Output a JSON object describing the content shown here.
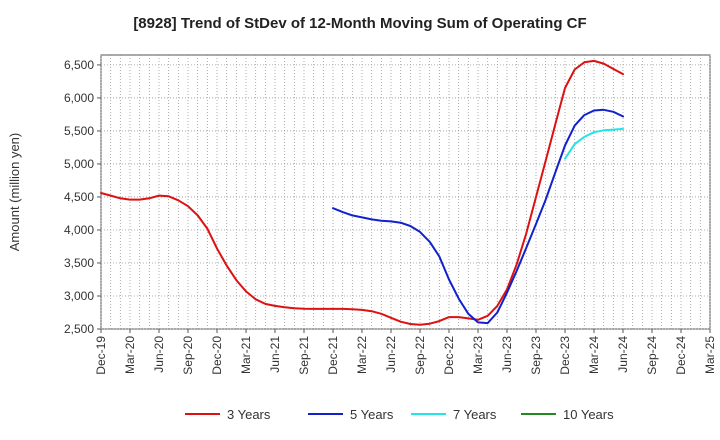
{
  "chart_data": {
    "type": "line",
    "title": "[8928]  Trend of StDev of 12-Month Moving Sum of Operating CF",
    "xlabel": "",
    "ylabel": "Amount (million yen)",
    "ylim": [
      2500,
      6650
    ],
    "yticks": [
      2500,
      3000,
      3500,
      4000,
      4500,
      5000,
      5500,
      6000,
      6500
    ],
    "ytick_labels": [
      "2,500",
      "3,000",
      "3,500",
      "4,000",
      "4,500",
      "5,000",
      "5,500",
      "6,000",
      "6,500"
    ],
    "xticks": [
      "Dec-19",
      "Mar-20",
      "Jun-20",
      "Sep-20",
      "Dec-20",
      "Mar-21",
      "Jun-21",
      "Sep-21",
      "Dec-21",
      "Mar-22",
      "Jun-22",
      "Sep-22",
      "Dec-22",
      "Mar-23",
      "Jun-23",
      "Sep-23",
      "Dec-23",
      "Mar-24",
      "Jun-24",
      "Sep-24",
      "Dec-24",
      "Mar-25"
    ],
    "grid": true,
    "legend_position": "bottom",
    "series": [
      {
        "name": "3 Years",
        "color": "#dd1111",
        "x": [
          "2019-12",
          "2020-01",
          "2020-02",
          "2020-03",
          "2020-04",
          "2020-05",
          "2020-06",
          "2020-07",
          "2020-08",
          "2020-09",
          "2020-10",
          "2020-11",
          "2020-12",
          "2021-01",
          "2021-02",
          "2021-03",
          "2021-04",
          "2021-05",
          "2021-06",
          "2021-07",
          "2021-08",
          "2021-09",
          "2021-10",
          "2021-11",
          "2021-12",
          "2022-01",
          "2022-02",
          "2022-03",
          "2022-04",
          "2022-05",
          "2022-06",
          "2022-07",
          "2022-08",
          "2022-09",
          "2022-10",
          "2022-11",
          "2022-12",
          "2023-01",
          "2023-02",
          "2023-03",
          "2023-04",
          "2023-05",
          "2023-06",
          "2023-07",
          "2023-08",
          "2023-09",
          "2023-10",
          "2023-11",
          "2023-12",
          "2024-01",
          "2024-02",
          "2024-03",
          "2024-04",
          "2024-05",
          "2024-06"
        ],
        "values": [
          4560,
          4520,
          4480,
          4460,
          4460,
          4480,
          4520,
          4510,
          4450,
          4360,
          4220,
          4020,
          3720,
          3460,
          3240,
          3070,
          2950,
          2880,
          2850,
          2830,
          2815,
          2808,
          2805,
          2805,
          2805,
          2805,
          2800,
          2790,
          2770,
          2730,
          2670,
          2610,
          2575,
          2565,
          2580,
          2620,
          2680,
          2680,
          2660,
          2640,
          2700,
          2850,
          3100,
          3480,
          3950,
          4500,
          5050,
          5600,
          6150,
          6430,
          6540,
          6560,
          6520,
          6440,
          6360
        ]
      },
      {
        "name": "5 Years",
        "color": "#1122cc",
        "x": [
          "2021-12",
          "2022-01",
          "2022-02",
          "2022-03",
          "2022-04",
          "2022-05",
          "2022-06",
          "2022-07",
          "2022-08",
          "2022-09",
          "2022-10",
          "2022-11",
          "2022-12",
          "2023-01",
          "2023-02",
          "2023-03",
          "2023-04",
          "2023-05",
          "2023-06",
          "2023-07",
          "2023-08",
          "2023-09",
          "2023-10",
          "2023-11",
          "2023-12",
          "2024-01",
          "2024-02",
          "2024-03",
          "2024-04",
          "2024-05",
          "2024-06"
        ],
        "values": [
          4330,
          4270,
          4220,
          4190,
          4160,
          4140,
          4130,
          4110,
          4060,
          3970,
          3820,
          3600,
          3250,
          2960,
          2730,
          2600,
          2590,
          2750,
          3050,
          3380,
          3730,
          4090,
          4460,
          4870,
          5280,
          5580,
          5740,
          5810,
          5820,
          5790,
          5720
        ]
      },
      {
        "name": "7 Years",
        "color": "#22e5e5",
        "x": [
          "2023-12",
          "2024-01",
          "2024-02",
          "2024-03",
          "2024-04",
          "2024-05",
          "2024-06"
        ],
        "values": [
          5080,
          5300,
          5410,
          5480,
          5510,
          5520,
          5530
        ]
      },
      {
        "name": "10 Years",
        "color": "#228822",
        "x": [],
        "values": []
      }
    ]
  }
}
